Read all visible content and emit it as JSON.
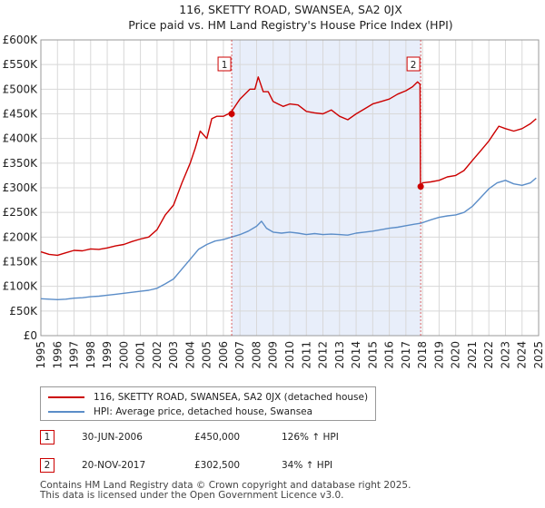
{
  "chart_data": {
    "type": "line",
    "title": "116, SKETTY ROAD, SWANSEA, SA2 0JX",
    "subtitle": "Price paid vs. HM Land Registry's House Price Index (HPI)",
    "xlabel": "",
    "ylabel": "",
    "xlim": [
      1995,
      2025
    ],
    "ylim": [
      0,
      600000
    ],
    "x_ticks": [
      "1995",
      "1996",
      "1997",
      "1998",
      "1999",
      "2000",
      "2001",
      "2002",
      "2003",
      "2004",
      "2005",
      "2006",
      "2007",
      "2008",
      "2009",
      "2010",
      "2011",
      "2012",
      "2013",
      "2014",
      "2015",
      "2016",
      "2017",
      "2018",
      "2019",
      "2020",
      "2021",
      "2022",
      "2023",
      "2024",
      "2025"
    ],
    "y_ticks": [
      {
        "value": 0,
        "label": "£0"
      },
      {
        "value": 50000,
        "label": "£50K"
      },
      {
        "value": 100000,
        "label": "£100K"
      },
      {
        "value": 150000,
        "label": "£150K"
      },
      {
        "value": 200000,
        "label": "£200K"
      },
      {
        "value": 250000,
        "label": "£250K"
      },
      {
        "value": 300000,
        "label": "£300K"
      },
      {
        "value": 350000,
        "label": "£350K"
      },
      {
        "value": 400000,
        "label": "£400K"
      },
      {
        "value": 450000,
        "label": "£450K"
      },
      {
        "value": 500000,
        "label": "£500K"
      },
      {
        "value": 550000,
        "label": "£550K"
      },
      {
        "value": 600000,
        "label": "£600K"
      }
    ],
    "grid": true,
    "shaded_range": [
      2006.5,
      2017.9
    ],
    "series": [
      {
        "name": "116, SKETTY ROAD, SWANSEA, SA2 0JX (detached house)",
        "color": "#cc0000",
        "x": [
          1995.0,
          1995.5,
          1996.0,
          1996.5,
          1997.0,
          1997.5,
          1998.0,
          1998.5,
          1999.0,
          1999.5,
          2000.0,
          2000.5,
          2001.0,
          2001.5,
          2002.0,
          2002.5,
          2003.0,
          2003.5,
          2004.0,
          2004.3,
          2004.6,
          2005.0,
          2005.3,
          2005.6,
          2006.0,
          2006.3,
          2006.5,
          2006.8,
          2007.0,
          2007.3,
          2007.6,
          2007.9,
          2008.1,
          2008.4,
          2008.7,
          2009.0,
          2009.3,
          2009.6,
          2010.0,
          2010.5,
          2011.0,
          2011.5,
          2012.0,
          2012.5,
          2013.0,
          2013.5,
          2014.0,
          2014.5,
          2015.0,
          2015.5,
          2016.0,
          2016.5,
          2017.0,
          2017.4,
          2017.7,
          2017.85,
          2017.88,
          2018.0,
          2018.5,
          2019.0,
          2019.5,
          2020.0,
          2020.5,
          2021.0,
          2021.5,
          2022.0,
          2022.3,
          2022.6,
          2023.0,
          2023.5,
          2024.0,
          2024.5,
          2024.85
        ],
        "values": [
          170000,
          165000,
          163000,
          168000,
          173000,
          172000,
          176000,
          175000,
          178000,
          182000,
          185000,
          191000,
          196000,
          200000,
          215000,
          245000,
          265000,
          310000,
          350000,
          380000,
          415000,
          400000,
          440000,
          445000,
          445000,
          450000,
          455000,
          470000,
          480000,
          490000,
          500000,
          500000,
          525000,
          495000,
          495000,
          475000,
          470000,
          465000,
          470000,
          468000,
          455000,
          452000,
          450000,
          458000,
          445000,
          438000,
          450000,
          460000,
          470000,
          475000,
          480000,
          490000,
          497000,
          505000,
          515000,
          510000,
          302500,
          310000,
          312000,
          315000,
          322000,
          325000,
          335000,
          355000,
          375000,
          395000,
          410000,
          425000,
          420000,
          415000,
          420000,
          430000,
          440000
        ]
      },
      {
        "name": "HPI: Average price, detached house, Swansea",
        "color": "#5b8dc8",
        "x": [
          1995.0,
          1995.5,
          1996.0,
          1996.5,
          1997.0,
          1997.5,
          1998.0,
          1998.5,
          1999.0,
          1999.5,
          2000.0,
          2000.5,
          2001.0,
          2001.5,
          2002.0,
          2002.5,
          2003.0,
          2003.5,
          2004.0,
          2004.5,
          2005.0,
          2005.5,
          2006.0,
          2006.5,
          2007.0,
          2007.5,
          2008.0,
          2008.3,
          2008.6,
          2009.0,
          2009.5,
          2010.0,
          2010.5,
          2011.0,
          2011.5,
          2012.0,
          2012.5,
          2013.0,
          2013.5,
          2014.0,
          2014.5,
          2015.0,
          2015.5,
          2016.0,
          2016.5,
          2017.0,
          2017.5,
          2017.9,
          2018.5,
          2019.0,
          2019.5,
          2020.0,
          2020.5,
          2021.0,
          2021.5,
          2022.0,
          2022.5,
          2023.0,
          2023.5,
          2024.0,
          2024.5,
          2024.85
        ],
        "values": [
          75000,
          74000,
          73000,
          74000,
          76000,
          77000,
          79000,
          80000,
          82000,
          84000,
          86000,
          88000,
          90000,
          92000,
          96000,
          105000,
          115000,
          135000,
          155000,
          175000,
          185000,
          192000,
          195000,
          200000,
          205000,
          212000,
          222000,
          232000,
          218000,
          210000,
          208000,
          210000,
          208000,
          205000,
          207000,
          205000,
          206000,
          205000,
          204000,
          208000,
          210000,
          212000,
          215000,
          218000,
          220000,
          223000,
          226000,
          228000,
          235000,
          240000,
          243000,
          245000,
          250000,
          262000,
          280000,
          298000,
          310000,
          315000,
          308000,
          305000,
          310000,
          320000
        ]
      }
    ],
    "sales": [
      {
        "marker": "1",
        "x": 2006.5,
        "value": 450000
      },
      {
        "marker": "2",
        "x": 2017.89,
        "value": 302500
      }
    ]
  },
  "legend": {
    "items": [
      {
        "label": "116, SKETTY ROAD, SWANSEA, SA2 0JX (detached house)",
        "color": "#cc0000"
      },
      {
        "label": "HPI: Average price, detached house, Swansea",
        "color": "#5b8dc8"
      }
    ]
  },
  "transactions": [
    {
      "marker": "1",
      "date": "30-JUN-2006",
      "price": "£450,000",
      "hpi": "126% ↑ HPI"
    },
    {
      "marker": "2",
      "date": "20-NOV-2017",
      "price": "£302,500",
      "hpi": "34% ↑ HPI"
    }
  ],
  "footer": {
    "line1": "Contains HM Land Registry data © Crown copyright and database right 2025.",
    "line2": "This data is licensed under the Open Government Licence v3.0."
  }
}
